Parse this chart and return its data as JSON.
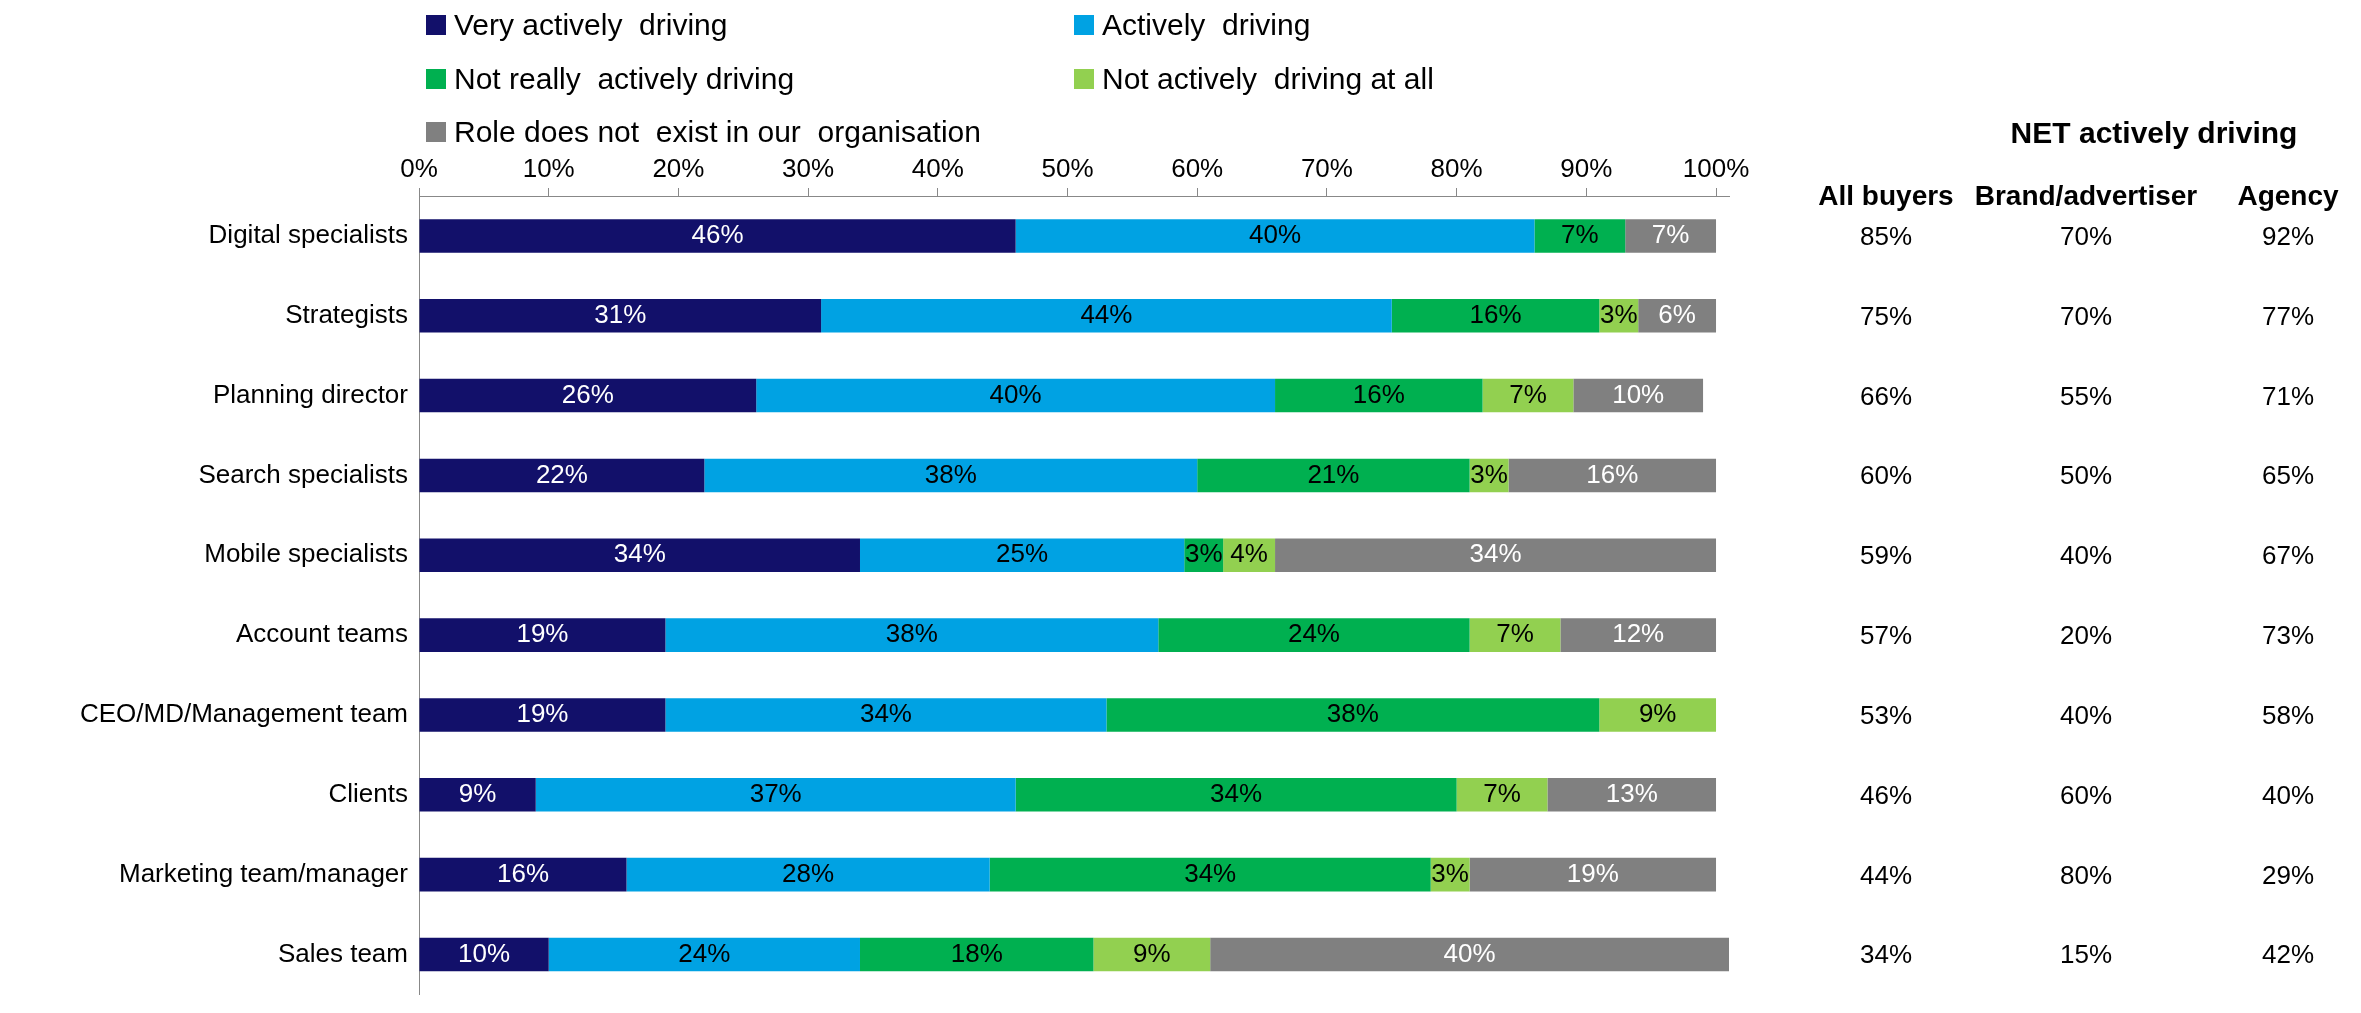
{
  "chart_data": [
    {
      "type": "bar",
      "orientation": "horizontal",
      "stacked": true,
      "legend": "top left",
      "grid": false,
      "categories": [
        "Digital specialists",
        "Strategists",
        "Planning director",
        "Search specialists",
        "Mobile specialists",
        "Account teams",
        "CEO/MD/Management team",
        "Clients",
        "Marketing team/manager",
        "Sales team"
      ],
      "xlim": [
        0,
        101
      ],
      "xticks": [
        {
          "value": 0,
          "label": "0%"
        },
        {
          "value": 10,
          "label": "10%"
        },
        {
          "value": 20,
          "label": "20%"
        },
        {
          "value": 30,
          "label": "30%"
        },
        {
          "value": 40,
          "label": "40%"
        },
        {
          "value": 50,
          "label": "50%"
        },
        {
          "value": 60,
          "label": "60%"
        },
        {
          "value": 70,
          "label": "70%"
        },
        {
          "value": 80,
          "label": "80%"
        },
        {
          "value": 90,
          "label": "90%"
        },
        {
          "value": 100,
          "label": "100%"
        }
      ],
      "series": [
        {
          "name": "Very actively  driving",
          "color": "#12106a",
          "values": [
            46,
            31,
            26,
            22,
            34,
            19,
            19,
            9,
            16,
            10
          ],
          "value_labels": [
            "46%",
            "31%",
            "26%",
            "22%",
            "34%",
            "19%",
            "19%",
            "9%",
            "16%",
            "10%"
          ]
        },
        {
          "name": "Actively  driving",
          "color": "#00a2e3",
          "values": [
            40,
            44,
            40,
            38,
            25,
            38,
            34,
            37,
            28,
            24
          ],
          "value_labels": [
            "40%",
            "44%",
            "40%",
            "38%",
            "25%",
            "38%",
            "34%",
            "37%",
            "28%",
            "24%"
          ]
        },
        {
          "name": "Not really  actively driving",
          "color": "#00b050",
          "values": [
            7,
            16,
            16,
            21,
            3,
            24,
            38,
            34,
            34,
            18
          ],
          "value_labels": [
            "7%",
            "16%",
            "16%",
            "21%",
            "3%",
            "24%",
            "38%",
            "34%",
            "34%",
            "18%"
          ]
        },
        {
          "name": "Not actively  driving at all",
          "color": "#92d050",
          "values": [
            null,
            3,
            7,
            3,
            4,
            7,
            9,
            7,
            3,
            9
          ],
          "value_labels": [
            null,
            "3%",
            "7%",
            "3%",
            "4%",
            "7%",
            "9%",
            "7%",
            "3%",
            "9%"
          ]
        },
        {
          "name": "Role does not  exist in our  organisation",
          "color": "#808080",
          "values": [
            7,
            6,
            10,
            16,
            34,
            12,
            null,
            13,
            19,
            40
          ],
          "value_labels": [
            "7%",
            "6%",
            "10%",
            "16%",
            "34%",
            "12%",
            null,
            "13%",
            "19%",
            "40%"
          ]
        }
      ]
    },
    {
      "type": "other",
      "title": "NET actively driving",
      "categories": [
        "All buyers",
        "Brand/advertiser",
        "Agency"
      ],
      "annotations": [
        "85%",
        "70%",
        "92%",
        "75%",
        "70%",
        "77%",
        "66%",
        "55%",
        "71%",
        "60%",
        "50%",
        "65%",
        "59%",
        "40%",
        "67%",
        "57%",
        "20%",
        "73%",
        "53%",
        "40%",
        "58%",
        "46%",
        "60%",
        "40%",
        "44%",
        "80%",
        "29%",
        "34%",
        "15%",
        "42%"
      ]
    }
  ]
}
